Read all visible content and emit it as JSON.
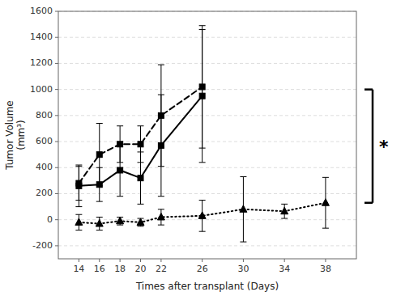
{
  "chart_data": {
    "type": "line",
    "xlabel": "Times after transplant (Days)",
    "ylabel": "Tumor Volume\n(mm³)",
    "x": [
      14,
      16,
      18,
      20,
      22,
      26,
      30,
      34,
      38
    ],
    "series": [
      {
        "color": "#000000",
        "marker": "square",
        "line_style": "solid",
        "values": [
          260,
          270,
          380,
          320,
          570,
          950,
          null,
          null,
          null
        ],
        "error": [
          160,
          130,
          200,
          200,
          390,
          510,
          null,
          null,
          null
        ]
      },
      {
        "color": "#000000",
        "marker": "square",
        "line_style": "dashed",
        "values": [
          280,
          500,
          580,
          580,
          800,
          1020,
          null,
          null,
          null
        ],
        "error": [
          130,
          240,
          140,
          140,
          390,
          470,
          null,
          null,
          null
        ]
      },
      {
        "color": "#000000",
        "marker": "triangle",
        "line_style": "dotted",
        "values": [
          -20,
          -30,
          -10,
          -20,
          20,
          30,
          80,
          65,
          130
        ],
        "error": [
          60,
          50,
          30,
          30,
          60,
          120,
          250,
          55,
          195
        ]
      }
    ],
    "xlim": [
      12,
      41
    ],
    "xticks": [
      14,
      16,
      18,
      20,
      22,
      26,
      30,
      34,
      38
    ],
    "ylim": [
      -300,
      1600
    ],
    "yticks": [
      -200,
      0,
      200,
      400,
      600,
      800,
      1000,
      1200,
      1400,
      1600
    ],
    "grid": "y",
    "annotations": [
      {
        "text": "*",
        "y": [
          130,
          1000
        ]
      }
    ]
  }
}
